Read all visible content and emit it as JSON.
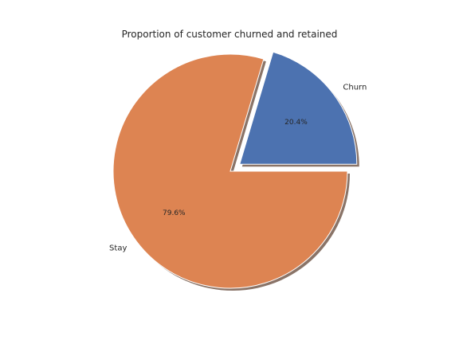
{
  "chart_data": {
    "type": "pie",
    "title": "Proportion of customer churned and retained",
    "labels": [
      "Churn",
      "Stay"
    ],
    "values": [
      20.4,
      79.6
    ],
    "pct_labels": [
      "20.4%",
      "79.6%"
    ],
    "colors": [
      "#4c72b0",
      "#dd8452"
    ],
    "explode": [
      0.1,
      0
    ],
    "start_angle_deg": 0,
    "shadow": true
  }
}
